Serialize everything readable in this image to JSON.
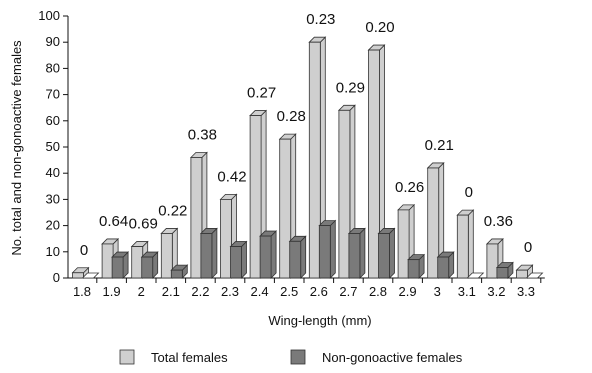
{
  "chart_data": {
    "type": "bar",
    "categories": [
      "1.8",
      "1.9",
      "2",
      "2.1",
      "2.2",
      "2.3",
      "2.4",
      "2.5",
      "2.6",
      "2.7",
      "2.8",
      "2.9",
      "3",
      "3.1",
      "3.2",
      "3.3"
    ],
    "series": [
      {
        "name": "Total females",
        "values": [
          2,
          13,
          12,
          17,
          46,
          30,
          62,
          53,
          90,
          64,
          87,
          26,
          42,
          24,
          13,
          3
        ],
        "color": "#cfcfcf"
      },
      {
        "name": "Non-gonoactive females",
        "values": [
          0,
          8,
          8,
          3,
          17,
          12,
          16,
          14,
          20,
          17,
          17,
          7,
          8,
          0,
          4,
          0
        ],
        "color": "#7a7a7a"
      }
    ],
    "ratio_labels": [
      "0",
      "0.64",
      "0.69",
      "0.22",
      "0.38",
      "0.42",
      "0.27",
      "0.28",
      "0.23",
      "0.29",
      "0.20",
      "0.26",
      "0.21",
      "0",
      "0.36",
      "0"
    ],
    "title": "",
    "xlabel": "Wing-length (mm)",
    "ylabel": "No. total and non-gonoactive females",
    "ylim": [
      0,
      100
    ],
    "yticks": [
      0,
      10,
      20,
      30,
      40,
      50,
      60,
      70,
      80,
      90,
      100
    ],
    "ytick_labels": [
      "0",
      "10",
      "20",
      "30",
      "40",
      "50",
      "60",
      "70",
      "80",
      "90",
      "100"
    ],
    "grid": false,
    "legend_position": "bottom"
  }
}
